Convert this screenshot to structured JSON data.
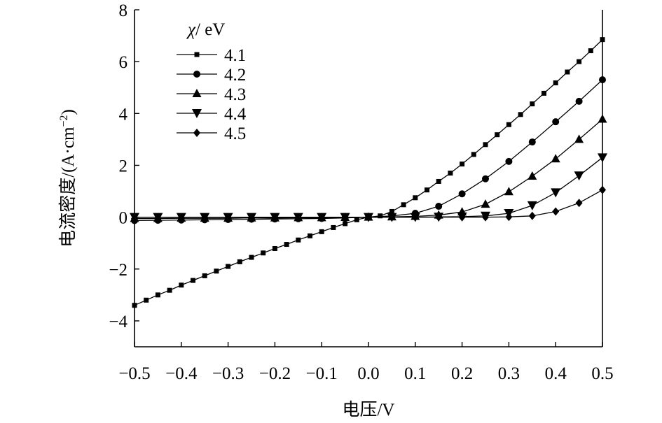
{
  "chart_data": {
    "type": "line",
    "xlabel": "电压/V",
    "ylabel_main": "电流密度/(A·cm",
    "ylabel_exp": "−2",
    "ylabel_close": ")",
    "xlim": [
      -0.5,
      0.5
    ],
    "ylim": [
      -5,
      8
    ],
    "x_ticks": [
      -0.5,
      -0.4,
      -0.3,
      -0.2,
      -0.1,
      0.0,
      0.1,
      0.2,
      0.3,
      0.4,
      0.5
    ],
    "x_tick_labels": [
      "−0.5",
      "−0.4",
      "−0.3",
      "−0.2",
      "−0.1",
      "0.0",
      "0.1",
      "0.2",
      "0.3",
      "0.4",
      "0.5"
    ],
    "y_ticks": [
      -4,
      -2,
      0,
      2,
      4,
      6,
      8
    ],
    "y_tick_labels": [
      "−4",
      "−2",
      "0",
      "2",
      "4",
      "6",
      "8"
    ],
    "grid": false,
    "legend": {
      "title_symbol": "χ",
      "title_unit": "/ eV",
      "placement": "top-left"
    },
    "x": [
      -0.5,
      -0.45,
      -0.4,
      -0.35,
      -0.3,
      -0.25,
      -0.2,
      -0.15,
      -0.1,
      -0.05,
      0.0,
      0.05,
      0.1,
      0.15,
      0.2,
      0.25,
      0.3,
      0.35,
      0.4,
      0.45,
      0.5
    ],
    "series": [
      {
        "name": "4.1",
        "marker": "square",
        "x": [
          -0.5,
          -0.475,
          -0.45,
          -0.425,
          -0.4,
          -0.375,
          -0.35,
          -0.325,
          -0.3,
          -0.275,
          -0.25,
          -0.225,
          -0.2,
          -0.175,
          -0.15,
          -0.125,
          -0.1,
          -0.075,
          -0.05,
          -0.025,
          0.0,
          0.025,
          0.05,
          0.075,
          0.1,
          0.125,
          0.15,
          0.175,
          0.2,
          0.225,
          0.25,
          0.275,
          0.3,
          0.325,
          0.35,
          0.375,
          0.4,
          0.425,
          0.45,
          0.475,
          0.5
        ],
        "values": [
          -3.4,
          -3.2,
          -3.0,
          -2.82,
          -2.62,
          -2.44,
          -2.26,
          -2.08,
          -1.9,
          -1.72,
          -1.55,
          -1.38,
          -1.21,
          -1.05,
          -0.88,
          -0.72,
          -0.56,
          -0.4,
          -0.25,
          -0.1,
          0.0,
          0.05,
          0.22,
          0.48,
          0.75,
          1.05,
          1.38,
          1.7,
          2.05,
          2.42,
          2.8,
          3.18,
          3.57,
          3.96,
          4.37,
          4.78,
          5.18,
          5.6,
          6.0,
          6.42,
          6.85
        ]
      },
      {
        "name": "4.2",
        "marker": "circle",
        "x": [
          -0.5,
          -0.45,
          -0.4,
          -0.35,
          -0.3,
          -0.25,
          -0.2,
          -0.15,
          -0.1,
          -0.05,
          0.0,
          0.05,
          0.1,
          0.15,
          0.2,
          0.25,
          0.3,
          0.35,
          0.4,
          0.45,
          0.5
        ],
        "values": [
          -0.13,
          -0.12,
          -0.11,
          -0.1,
          -0.09,
          -0.08,
          -0.07,
          -0.06,
          -0.05,
          -0.03,
          0.0,
          0.05,
          0.15,
          0.42,
          0.9,
          1.48,
          2.15,
          2.9,
          3.68,
          4.47,
          5.3
        ]
      },
      {
        "name": "4.3",
        "marker": "triangle-up",
        "x": [
          -0.5,
          -0.45,
          -0.4,
          -0.35,
          -0.3,
          -0.25,
          -0.2,
          -0.15,
          -0.1,
          -0.05,
          0.0,
          0.05,
          0.1,
          0.15,
          0.2,
          0.25,
          0.3,
          0.35,
          0.4,
          0.45,
          0.5
        ],
        "values": [
          -0.05,
          -0.05,
          -0.04,
          -0.04,
          -0.04,
          -0.03,
          -0.03,
          -0.02,
          -0.02,
          -0.01,
          0.0,
          0.01,
          0.03,
          0.08,
          0.2,
          0.5,
          0.98,
          1.58,
          2.25,
          3.0,
          3.78
        ]
      },
      {
        "name": "4.4",
        "marker": "triangle-down",
        "x": [
          -0.5,
          -0.45,
          -0.4,
          -0.35,
          -0.3,
          -0.25,
          -0.2,
          -0.15,
          -0.1,
          -0.05,
          0.0,
          0.05,
          0.1,
          0.15,
          0.2,
          0.25,
          0.3,
          0.35,
          0.4,
          0.45,
          0.5
        ],
        "values": [
          0.0,
          0.0,
          0.0,
          0.0,
          0.0,
          0.0,
          0.0,
          0.0,
          0.0,
          0.0,
          0.0,
          0.0,
          0.0,
          0.01,
          0.02,
          0.05,
          0.15,
          0.45,
          0.95,
          1.6,
          2.3
        ]
      },
      {
        "name": "4.5",
        "marker": "diamond",
        "x": [
          -0.5,
          -0.45,
          -0.4,
          -0.35,
          -0.3,
          -0.25,
          -0.2,
          -0.15,
          -0.1,
          -0.05,
          0.0,
          0.05,
          0.1,
          0.15,
          0.2,
          0.25,
          0.3,
          0.35,
          0.4,
          0.45,
          0.5
        ],
        "values": [
          -0.05,
          -0.05,
          -0.04,
          -0.04,
          -0.04,
          -0.03,
          -0.03,
          -0.02,
          -0.02,
          -0.01,
          0.0,
          0.0,
          0.0,
          0.0,
          0.0,
          0.0,
          0.01,
          0.05,
          0.22,
          0.55,
          1.05
        ]
      }
    ]
  }
}
